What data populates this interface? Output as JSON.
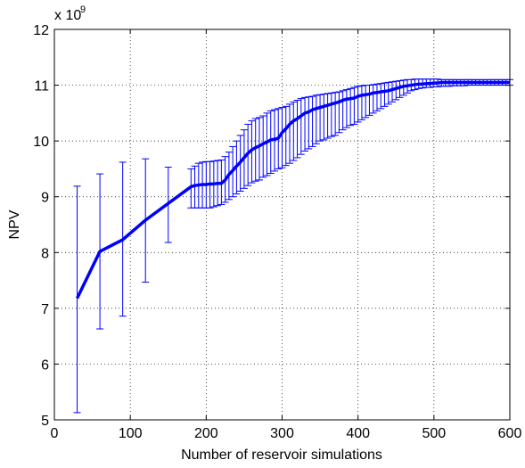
{
  "chart_data": {
    "type": "line",
    "title": "",
    "xlabel": "Number of reservoir simulations",
    "ylabel": "NPV",
    "y_exponent_label": "x 10",
    "y_exponent_power": "9",
    "xlim": [
      0,
      600
    ],
    "ylim": [
      5,
      12
    ],
    "xticks": [
      0,
      100,
      200,
      300,
      400,
      500,
      600
    ],
    "yticks": [
      5,
      6,
      7,
      8,
      9,
      10,
      11,
      12
    ],
    "grid": true,
    "line_color": "#0000ff",
    "series": [
      {
        "x": [
          30,
          60,
          90,
          120,
          150,
          180,
          185,
          190,
          195,
          200,
          205,
          210,
          215,
          220,
          225,
          230,
          235,
          240,
          245,
          250,
          255,
          260,
          265,
          270,
          275,
          280,
          285,
          290,
          295,
          300,
          305,
          310,
          315,
          320,
          325,
          330,
          335,
          340,
          345,
          350,
          355,
          360,
          365,
          370,
          375,
          380,
          385,
          390,
          395,
          400,
          405,
          410,
          415,
          420,
          425,
          430,
          435,
          440,
          445,
          450,
          455,
          460,
          465,
          470,
          475,
          480,
          485,
          490,
          495,
          500,
          505,
          510,
          515,
          520,
          525,
          530,
          535,
          540,
          545,
          550,
          555,
          560,
          565,
          570,
          575,
          580,
          585,
          590,
          595,
          600
        ],
        "y": [
          7.18,
          8.02,
          8.23,
          8.58,
          8.88,
          9.18,
          9.2,
          9.21,
          9.22,
          9.22,
          9.23,
          9.23,
          9.24,
          9.24,
          9.3,
          9.4,
          9.47,
          9.55,
          9.62,
          9.7,
          9.78,
          9.84,
          9.88,
          9.91,
          9.95,
          9.98,
          10.02,
          10.03,
          10.05,
          10.15,
          10.22,
          10.3,
          10.36,
          10.4,
          10.45,
          10.5,
          10.52,
          10.56,
          10.58,
          10.6,
          10.62,
          10.64,
          10.66,
          10.68,
          10.7,
          10.73,
          10.75,
          10.76,
          10.77,
          10.8,
          10.82,
          10.83,
          10.84,
          10.86,
          10.87,
          10.88,
          10.89,
          10.9,
          10.92,
          10.94,
          10.96,
          10.98,
          10.99,
          11.0,
          11.01,
          11.02,
          11.02,
          11.03,
          11.03,
          11.04,
          11.04,
          11.05,
          11.05,
          11.05,
          11.05,
          11.05,
          11.05,
          11.05,
          11.05,
          11.05,
          11.05,
          11.05,
          11.05,
          11.05,
          11.05,
          11.05,
          11.05,
          11.05,
          11.05,
          11.05
        ],
        "err_low": [
          5.13,
          6.63,
          6.86,
          7.47,
          8.18,
          8.8,
          8.8,
          8.8,
          8.8,
          8.8,
          8.8,
          8.82,
          8.84,
          8.86,
          8.9,
          8.95,
          9.0,
          9.05,
          9.1,
          9.15,
          9.2,
          9.25,
          9.28,
          9.3,
          9.35,
          9.38,
          9.42,
          9.46,
          9.5,
          9.52,
          9.56,
          9.6,
          9.65,
          9.7,
          9.76,
          9.82,
          9.86,
          9.9,
          9.95,
          10.0,
          10.02,
          10.05,
          10.08,
          10.1,
          10.15,
          10.2,
          10.24,
          10.28,
          10.3,
          10.34,
          10.38,
          10.42,
          10.46,
          10.5,
          10.54,
          10.58,
          10.62,
          10.66,
          10.7,
          10.74,
          10.78,
          10.82,
          10.86,
          10.9,
          10.92,
          10.94,
          10.95,
          10.96,
          10.96,
          10.97,
          10.97,
          10.98,
          10.98,
          10.98,
          10.99,
          10.99,
          10.99,
          10.99,
          11.0,
          11.0,
          11.0,
          11.0,
          11.0,
          11.0,
          11.0,
          11.0,
          11.0,
          11.0,
          11.0,
          11.0
        ],
        "err_high": [
          9.19,
          9.41,
          9.62,
          9.68,
          9.53,
          9.5,
          9.55,
          9.6,
          9.62,
          9.63,
          9.63,
          9.64,
          9.65,
          9.66,
          9.72,
          9.8,
          9.9,
          10.0,
          10.1,
          10.2,
          10.3,
          10.36,
          10.4,
          10.42,
          10.45,
          10.5,
          10.54,
          10.56,
          10.58,
          10.6,
          10.62,
          10.66,
          10.7,
          10.73,
          10.76,
          10.78,
          10.79,
          10.8,
          10.82,
          10.83,
          10.84,
          10.85,
          10.86,
          10.87,
          10.88,
          10.9,
          10.92,
          10.94,
          10.96,
          10.98,
          10.99,
          11.0,
          11.0,
          11.01,
          11.02,
          11.03,
          11.04,
          11.05,
          11.06,
          11.07,
          11.08,
          11.09,
          11.1,
          11.1,
          11.11,
          11.11,
          11.11,
          11.11,
          11.11,
          11.11,
          11.11,
          11.1,
          11.1,
          11.1,
          11.1,
          11.1,
          11.1,
          11.1,
          11.1,
          11.1,
          11.1,
          11.1,
          11.1,
          11.1,
          11.1,
          11.1,
          11.1,
          11.1,
          11.1,
          11.1
        ]
      }
    ]
  }
}
